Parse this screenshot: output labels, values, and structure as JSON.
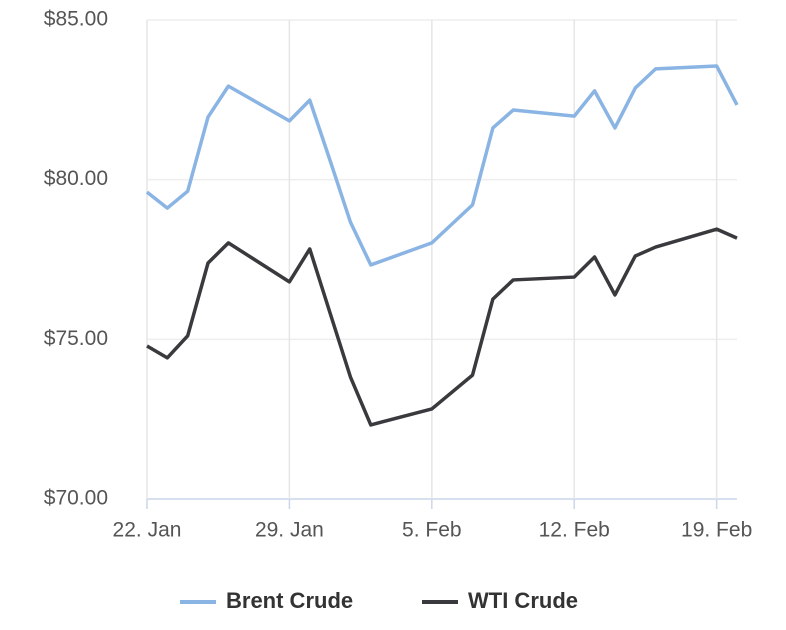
{
  "chart_data": {
    "type": "line",
    "x": [
      "22. Jan",
      "23. Jan",
      "24. Jan",
      "25. Jan",
      "26. Jan",
      "29. Jan",
      "30. Jan",
      "31. Jan",
      "1. Feb",
      "2. Feb",
      "5. Feb",
      "7. Feb",
      "8. Feb",
      "9. Feb",
      "12. Feb",
      "13. Feb",
      "14. Feb",
      "15. Feb",
      "16. Feb",
      "19. Feb",
      "20. Feb"
    ],
    "series": [
      {
        "name": "Brent Crude",
        "color": "#8ab4e3",
        "values": [
          79.61,
          79.11,
          79.64,
          81.96,
          82.93,
          81.84,
          82.49,
          80.6,
          78.67,
          77.33,
          78.02,
          79.21,
          81.62,
          82.18,
          81.99,
          82.78,
          81.62,
          82.87,
          83.47,
          83.56,
          82.34
        ]
      },
      {
        "name": "WTI Crude",
        "color": "#3a3a3e",
        "values": [
          74.79,
          74.42,
          75.11,
          77.39,
          78.02,
          76.8,
          77.83,
          75.82,
          73.82,
          72.32,
          72.82,
          73.88,
          76.26,
          76.86,
          76.95,
          77.58,
          76.39,
          77.61,
          77.89,
          78.45,
          78.17
        ]
      }
    ],
    "xlim": [
      "22. Jan",
      "20. Feb"
    ],
    "xticks": [
      "22. Jan",
      "29. Jan",
      "5. Feb",
      "12. Feb",
      "19. Feb"
    ],
    "ylim": [
      70,
      85
    ],
    "yticks": [
      {
        "value": 70,
        "label": "$70.00"
      },
      {
        "value": 75,
        "label": "$75.00"
      },
      {
        "value": 80,
        "label": "$80.00"
      },
      {
        "value": 85,
        "label": "$85.00"
      }
    ],
    "grid": true
  }
}
